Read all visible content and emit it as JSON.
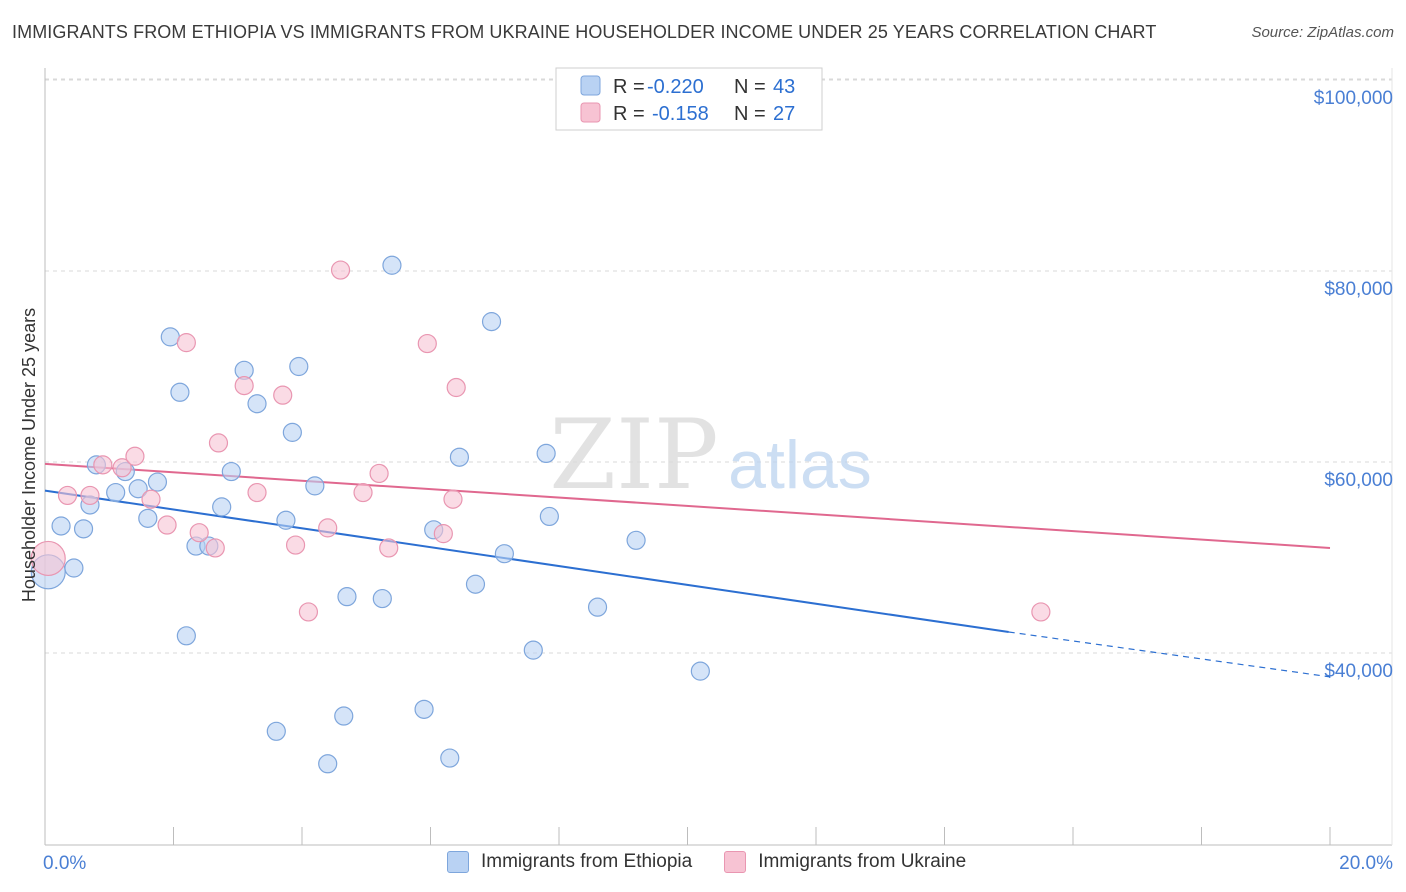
{
  "title": "IMMIGRANTS FROM ETHIOPIA VS IMMIGRANTS FROM UKRAINE HOUSEHOLDER INCOME UNDER 25 YEARS CORRELATION CHART",
  "source": "Source: ZipAtlas.com",
  "watermark": {
    "zip": "ZIP",
    "atlas": "atlas"
  },
  "colors": {
    "ethiopia_fill": "#b9d2f3",
    "ethiopia_stroke": "#7ea6dc",
    "ethiopia_line": "#2c6fd1",
    "ukraine_fill": "#f7c3d3",
    "ukraine_stroke": "#e996b1",
    "ukraine_line": "#e0688f",
    "axis_label": "#4a7fd4",
    "grid": "#d9d9d9"
  },
  "stats_legend": [
    {
      "r_label": "R =",
      "r_value": "-0.220",
      "n_label": "N =",
      "n_value": "43"
    },
    {
      "r_label": "R =",
      "r_value": "-0.158",
      "n_label": "N =",
      "n_value": "27"
    }
  ],
  "bottom_legend": [
    {
      "label": "Immigrants from Ethiopia"
    },
    {
      "label": "Immigrants from Ukraine"
    }
  ],
  "chart_data": {
    "type": "scatter",
    "title": "IMMIGRANTS FROM ETHIOPIA VS IMMIGRANTS FROM UKRAINE HOUSEHOLDER INCOME UNDER 25 YEARS CORRELATION CHART",
    "xlabel": "",
    "ylabel": "Householder Income Under 25 years",
    "xlim": [
      0,
      20
    ],
    "ylim": [
      20000,
      102000
    ],
    "x_tick_labels": [
      "0.0%",
      "20.0%"
    ],
    "y_ticks": [
      40000,
      60000,
      80000,
      100000
    ],
    "y_tick_labels": [
      "$40,000",
      "$60,000",
      "$80,000",
      "$100,000"
    ],
    "series": [
      {
        "name": "Immigrants from Ethiopia",
        "points": [
          [
            0.05,
            48500
          ],
          [
            0.25,
            53300
          ],
          [
            0.45,
            48900
          ],
          [
            0.6,
            53000
          ],
          [
            0.7,
            55500
          ],
          [
            0.8,
            59700
          ],
          [
            1.1,
            56800
          ],
          [
            1.25,
            59000
          ],
          [
            1.45,
            57200
          ],
          [
            1.6,
            54100
          ],
          [
            1.75,
            57900
          ],
          [
            1.95,
            73100
          ],
          [
            2.1,
            67300
          ],
          [
            2.2,
            41800
          ],
          [
            2.35,
            51200
          ],
          [
            2.55,
            51200
          ],
          [
            2.75,
            55300
          ],
          [
            2.9,
            59000
          ],
          [
            3.1,
            69600
          ],
          [
            3.3,
            66100
          ],
          [
            3.6,
            31800
          ],
          [
            3.75,
            53900
          ],
          [
            3.85,
            63100
          ],
          [
            3.95,
            70000
          ],
          [
            4.2,
            57500
          ],
          [
            4.4,
            28400
          ],
          [
            4.65,
            33400
          ],
          [
            4.7,
            45900
          ],
          [
            5.25,
            45700
          ],
          [
            5.4,
            80600
          ],
          [
            5.9,
            34100
          ],
          [
            6.05,
            52900
          ],
          [
            6.3,
            29000
          ],
          [
            6.45,
            60500
          ],
          [
            6.7,
            47200
          ],
          [
            6.95,
            74700
          ],
          [
            7.15,
            50400
          ],
          [
            7.6,
            40300
          ],
          [
            7.8,
            60900
          ],
          [
            7.85,
            54300
          ],
          [
            8.6,
            44800
          ],
          [
            9.2,
            51800
          ],
          [
            10.2,
            38100
          ]
        ],
        "trend": {
          "x0": 0,
          "y0": 57000,
          "x1": 15,
          "y1": 42200,
          "dashed_to_x": 20,
          "dashed_to_y": 37500
        }
      },
      {
        "name": "Immigrants from Ukraine",
        "points": [
          [
            0.05,
            49900
          ],
          [
            0.35,
            56500
          ],
          [
            0.7,
            56500
          ],
          [
            0.9,
            59700
          ],
          [
            1.2,
            59400
          ],
          [
            1.4,
            60600
          ],
          [
            1.65,
            56100
          ],
          [
            1.9,
            53400
          ],
          [
            2.2,
            72500
          ],
          [
            2.4,
            52600
          ],
          [
            2.65,
            51000
          ],
          [
            2.7,
            62000
          ],
          [
            3.1,
            68000
          ],
          [
            3.3,
            56800
          ],
          [
            3.7,
            67000
          ],
          [
            3.9,
            51300
          ],
          [
            4.1,
            44300
          ],
          [
            4.4,
            53100
          ],
          [
            4.6,
            80100
          ],
          [
            4.95,
            56800
          ],
          [
            5.2,
            58800
          ],
          [
            5.35,
            51000
          ],
          [
            5.95,
            72400
          ],
          [
            6.2,
            52500
          ],
          [
            6.35,
            56100
          ],
          [
            6.4,
            67800
          ],
          [
            15.5,
            44300
          ]
        ],
        "trend": {
          "x0": 0,
          "y0": 59800,
          "x1": 20,
          "y1": 51000
        }
      }
    ]
  }
}
